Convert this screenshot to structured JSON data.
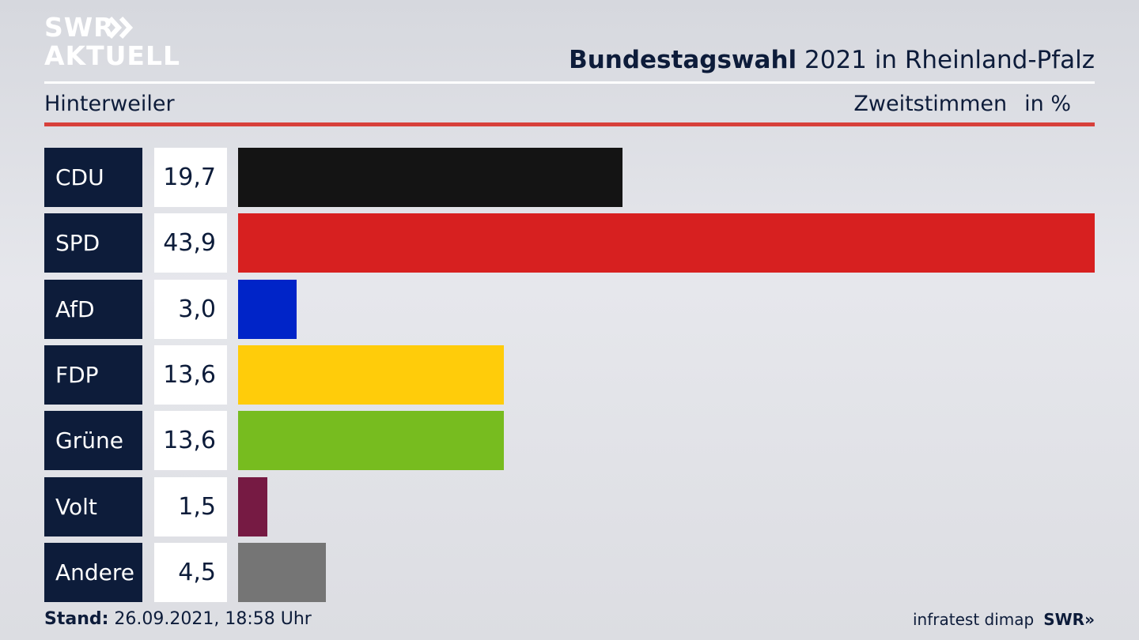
{
  "logo": {
    "line1": "SWR",
    "line2": "AKTUELL"
  },
  "header": {
    "title_bold": "Bundestagswahl",
    "title_rest": " 2021 in Rheinland-Pfalz",
    "location": "Hinterweiler",
    "vote_type": "Zweitstimmen",
    "unit": "in %"
  },
  "chart_data": {
    "type": "bar",
    "orientation": "horizontal",
    "categories": [
      "CDU",
      "SPD",
      "AfD",
      "FDP",
      "Grüne",
      "Volt",
      "Andere"
    ],
    "values": [
      19.7,
      43.9,
      3.0,
      13.6,
      13.6,
      1.5,
      4.5
    ],
    "value_labels": [
      "19,7",
      "43,9",
      "3,0",
      "13,6",
      "13,6",
      "1,5",
      "4,5"
    ],
    "colors": [
      "#141414",
      "#d72020",
      "#0024c8",
      "#ffcc0a",
      "#77bc1f",
      "#761a43",
      "#757575"
    ],
    "xlim": [
      0,
      43.9
    ]
  },
  "footer": {
    "stand_label": "Stand:",
    "stand_value": " 26.09.2021, 18:58 Uhr",
    "source": "infratest dimap",
    "brand": "SWR»"
  }
}
